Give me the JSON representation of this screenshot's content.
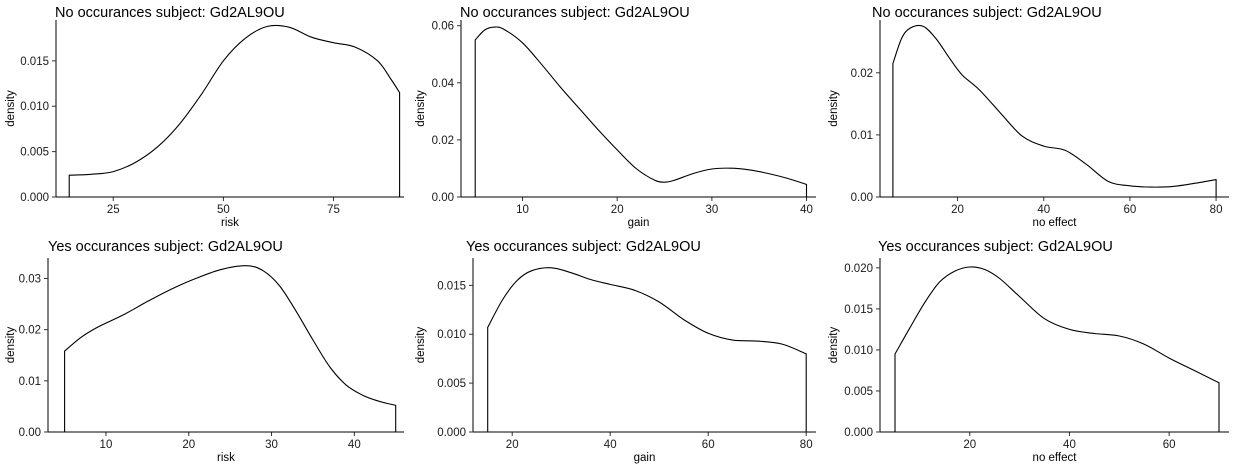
{
  "chart_data": [
    {
      "type": "area",
      "title": "No occurances subject:  Gd2AL9OU",
      "xlabel": "risk",
      "ylabel": "density",
      "xlim": [
        12,
        91
      ],
      "ylim": [
        0,
        0.0195
      ],
      "xticks": [
        25,
        50,
        75
      ],
      "yticks": [
        0.0,
        0.005,
        0.01,
        0.015
      ],
      "ytick_labels": [
        "0.000",
        "0.005",
        "0.010",
        "0.015"
      ],
      "x": [
        15,
        20,
        25,
        30,
        35,
        40,
        45,
        50,
        55,
        60,
        65,
        70,
        75,
        80,
        85,
        88,
        90
      ],
      "y": [
        0.0024,
        0.0025,
        0.0028,
        0.0038,
        0.0055,
        0.008,
        0.0113,
        0.015,
        0.0175,
        0.0188,
        0.0187,
        0.0176,
        0.017,
        0.0165,
        0.015,
        0.013,
        0.0115
      ]
    },
    {
      "type": "area",
      "title": "No occurances subject:  Gd2AL9OU",
      "xlabel": "gain",
      "ylabel": "density",
      "xlim": [
        3.5,
        41
      ],
      "ylim": [
        0,
        0.062
      ],
      "xticks": [
        10,
        20,
        30,
        40
      ],
      "yticks": [
        0.0,
        0.02,
        0.04,
        0.06
      ],
      "ytick_labels": [
        "0.00",
        "0.02",
        "0.04",
        "0.06"
      ],
      "x": [
        5,
        6,
        7,
        8,
        10,
        12,
        14,
        16,
        18,
        20,
        22,
        24,
        25,
        26,
        28,
        30,
        32,
        34,
        36,
        38,
        40
      ],
      "y": [
        0.055,
        0.0585,
        0.0595,
        0.0588,
        0.054,
        0.0465,
        0.0385,
        0.031,
        0.0235,
        0.0165,
        0.01,
        0.0058,
        0.0052,
        0.0058,
        0.0082,
        0.0098,
        0.0101,
        0.0095,
        0.0082,
        0.0065,
        0.0044
      ]
    },
    {
      "type": "area",
      "title": "No occurances subject:  Gd2AL9OU",
      "xlabel": "no effect",
      "ylabel": "density",
      "xlim": [
        2,
        83
      ],
      "ylim": [
        0,
        0.0285
      ],
      "xticks": [
        20,
        40,
        60,
        80
      ],
      "yticks": [
        0.0,
        0.01,
        0.02
      ],
      "ytick_labels": [
        "0.00",
        "0.01",
        "0.02"
      ],
      "x": [
        5,
        7,
        9,
        12,
        15,
        18,
        21,
        25,
        30,
        35,
        40,
        45,
        50,
        55,
        60,
        65,
        70,
        75,
        80
      ],
      "y": [
        0.0215,
        0.0255,
        0.0272,
        0.0275,
        0.0255,
        0.0225,
        0.0197,
        0.0173,
        0.0135,
        0.0098,
        0.0082,
        0.0075,
        0.0052,
        0.0025,
        0.0018,
        0.0016,
        0.0017,
        0.0022,
        0.0028
      ]
    },
    {
      "type": "area",
      "title": "Yes occurances subject:  Gd2AL9OU",
      "xlabel": "risk",
      "ylabel": "density",
      "xlim": [
        3,
        46
      ],
      "ylim": [
        0,
        0.034
      ],
      "xticks": [
        10,
        20,
        30,
        40
      ],
      "yticks": [
        0.0,
        0.01,
        0.02,
        0.03
      ],
      "ytick_labels": [
        "0.00",
        "0.01",
        "0.02",
        "0.03"
      ],
      "x": [
        5,
        7,
        9,
        12,
        15,
        18,
        21,
        24,
        27,
        29,
        31,
        33,
        35,
        37,
        39,
        41,
        43,
        45
      ],
      "y": [
        0.0158,
        0.0185,
        0.0205,
        0.0228,
        0.0255,
        0.028,
        0.0301,
        0.0318,
        0.0325,
        0.0315,
        0.0285,
        0.0235,
        0.018,
        0.0128,
        0.0092,
        0.0072,
        0.006,
        0.0052
      ]
    },
    {
      "type": "area",
      "title": "Yes occurances subject:  Gd2AL9OU",
      "xlabel": "gain",
      "ylabel": "density",
      "xlim": [
        12,
        82
      ],
      "ylim": [
        0,
        0.0178
      ],
      "xticks": [
        20,
        40,
        60,
        80
      ],
      "yticks": [
        0.0,
        0.005,
        0.01,
        0.015
      ],
      "ytick_labels": [
        "0.000",
        "0.005",
        "0.010",
        "0.015"
      ],
      "x": [
        15,
        18,
        21,
        24,
        28,
        32,
        36,
        40,
        45,
        50,
        55,
        60,
        65,
        70,
        75,
        80
      ],
      "y": [
        0.0107,
        0.0135,
        0.0155,
        0.0165,
        0.0168,
        0.0163,
        0.0156,
        0.0151,
        0.0145,
        0.0133,
        0.0115,
        0.0101,
        0.0094,
        0.0093,
        0.009,
        0.008
      ]
    },
    {
      "type": "area",
      "title": "Yes occurances subject:  Gd2AL9OU",
      "xlabel": "no effect",
      "ylabel": "density",
      "xlim": [
        2,
        72
      ],
      "ylim": [
        0,
        0.0212
      ],
      "xticks": [
        20,
        40,
        60
      ],
      "yticks": [
        0.0,
        0.005,
        0.01,
        0.015,
        0.02
      ],
      "ytick_labels": [
        "0.000",
        "0.005",
        "0.010",
        "0.015",
        "0.020"
      ],
      "x": [
        5,
        8,
        11,
        14,
        17,
        20,
        23,
        26,
        30,
        35,
        40,
        45,
        50,
        55,
        60,
        65,
        70
      ],
      "y": [
        0.0095,
        0.0127,
        0.0158,
        0.0183,
        0.0196,
        0.0201,
        0.0198,
        0.0187,
        0.0165,
        0.0138,
        0.0125,
        0.012,
        0.0117,
        0.0107,
        0.009,
        0.0075,
        0.006
      ]
    }
  ]
}
